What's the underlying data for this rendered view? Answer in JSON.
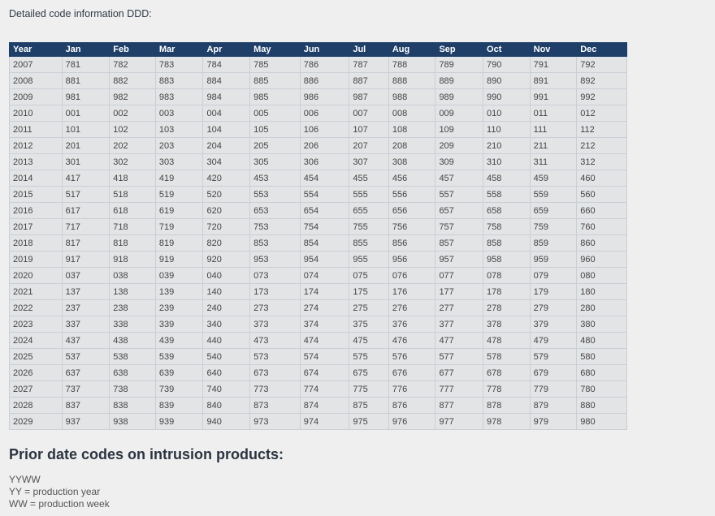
{
  "intro_text": "Detailed code information DDD:",
  "table": {
    "headers": [
      "Year",
      "Jan",
      "Feb",
      "Mar",
      "Apr",
      "May",
      "Jun",
      "Jul",
      "Aug",
      "Sep",
      "Oct",
      "Nov",
      "Dec"
    ],
    "rows": [
      [
        "2007",
        "781",
        "782",
        "783",
        "784",
        "785",
        "786",
        "787",
        "788",
        "789",
        "790",
        "791",
        "792"
      ],
      [
        "2008",
        "881",
        "882",
        "883",
        "884",
        "885",
        "886",
        "887",
        "888",
        "889",
        "890",
        "891",
        "892"
      ],
      [
        "2009",
        "981",
        "982",
        "983",
        "984",
        "985",
        "986",
        "987",
        "988",
        "989",
        "990",
        "991",
        "992"
      ],
      [
        "2010",
        "001",
        "002",
        "003",
        "004",
        "005",
        "006",
        "007",
        "008",
        "009",
        "010",
        "011",
        "012"
      ],
      [
        "2011",
        "101",
        "102",
        "103",
        "104",
        "105",
        "106",
        "107",
        "108",
        "109",
        "110",
        "111",
        "112"
      ],
      [
        "2012",
        "201",
        "202",
        "203",
        "204",
        "205",
        "206",
        "207",
        "208",
        "209",
        "210",
        "211",
        "212"
      ],
      [
        "2013",
        "301",
        "302",
        "303",
        "304",
        "305",
        "306",
        "307",
        "308",
        "309",
        "310",
        "311",
        "312"
      ],
      [
        "2014",
        "417",
        "418",
        "419",
        "420",
        "453",
        "454",
        "455",
        "456",
        "457",
        "458",
        "459",
        "460"
      ],
      [
        "2015",
        "517",
        "518",
        "519",
        "520",
        "553",
        "554",
        "555",
        "556",
        "557",
        "558",
        "559",
        "560"
      ],
      [
        "2016",
        "617",
        "618",
        "619",
        "620",
        "653",
        "654",
        "655",
        "656",
        "657",
        "658",
        "659",
        "660"
      ],
      [
        "2017",
        "717",
        "718",
        "719",
        "720",
        "753",
        "754",
        "755",
        "756",
        "757",
        "758",
        "759",
        "760"
      ],
      [
        "2018",
        "817",
        "818",
        "819",
        "820",
        "853",
        "854",
        "855",
        "856",
        "857",
        "858",
        "859",
        "860"
      ],
      [
        "2019",
        "917",
        "918",
        "919",
        "920",
        "953",
        "954",
        "955",
        "956",
        "957",
        "958",
        "959",
        "960"
      ],
      [
        "2020",
        "037",
        "038",
        "039",
        "040",
        "073",
        "074",
        "075",
        "076",
        "077",
        "078",
        "079",
        "080"
      ],
      [
        "2021",
        "137",
        "138",
        "139",
        "140",
        "173",
        "174",
        "175",
        "176",
        "177",
        "178",
        "179",
        "180"
      ],
      [
        "2022",
        "237",
        "238",
        "239",
        "240",
        "273",
        "274",
        "275",
        "276",
        "277",
        "278",
        "279",
        "280"
      ],
      [
        "2023",
        "337",
        "338",
        "339",
        "340",
        "373",
        "374",
        "375",
        "376",
        "377",
        "378",
        "379",
        "380"
      ],
      [
        "2024",
        "437",
        "438",
        "439",
        "440",
        "473",
        "474",
        "475",
        "476",
        "477",
        "478",
        "479",
        "480"
      ],
      [
        "2025",
        "537",
        "538",
        "539",
        "540",
        "573",
        "574",
        "575",
        "576",
        "577",
        "578",
        "579",
        "580"
      ],
      [
        "2026",
        "637",
        "638",
        "639",
        "640",
        "673",
        "674",
        "675",
        "676",
        "677",
        "678",
        "679",
        "680"
      ],
      [
        "2027",
        "737",
        "738",
        "739",
        "740",
        "773",
        "774",
        "775",
        "776",
        "777",
        "778",
        "779",
        "780"
      ],
      [
        "2028",
        "837",
        "838",
        "839",
        "840",
        "873",
        "874",
        "875",
        "876",
        "877",
        "878",
        "879",
        "880"
      ],
      [
        "2029",
        "937",
        "938",
        "939",
        "940",
        "973",
        "974",
        "975",
        "976",
        "977",
        "978",
        "979",
        "980"
      ]
    ]
  },
  "prior_heading": "Prior date codes on intrusion products:",
  "prior_notes": [
    "YYWW",
    "YY = production year",
    "WW = production week"
  ],
  "colors": {
    "header_bg": "#1f3f69",
    "cell_bg": "#e3e4e6",
    "page_bg": "#efefef"
  }
}
